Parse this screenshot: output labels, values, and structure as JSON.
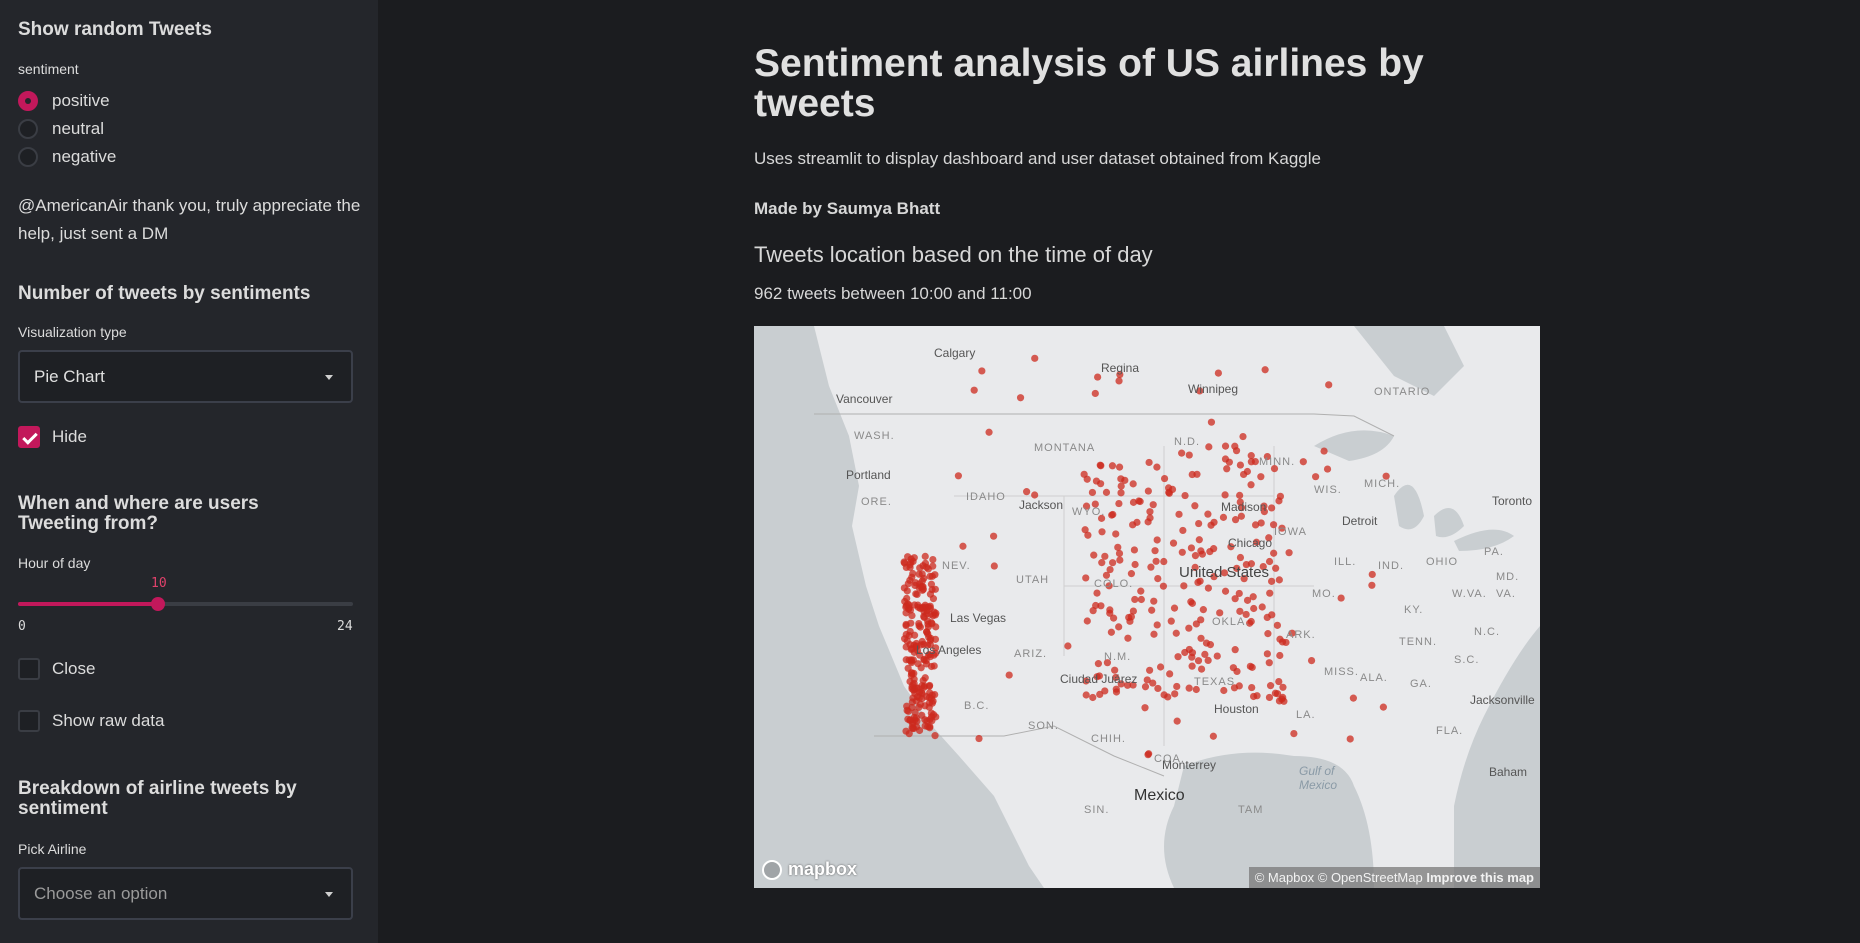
{
  "sidebar": {
    "random_tweets": {
      "heading": "Show random Tweets",
      "sentiment_label": "sentiment",
      "options": [
        "positive",
        "neutral",
        "negative"
      ],
      "selected": "positive",
      "tweet": "@AmericanAir thank you, truly appreciate the help, just sent a DM"
    },
    "number_of_tweets": {
      "heading": "Number of tweets by sentiments",
      "viz_label": "Visualization type",
      "viz_value": "Pie Chart",
      "hide_label": "Hide",
      "hide_checked": true
    },
    "when_where": {
      "heading": "When and where are users Tweeting from?",
      "hour_label": "Hour of day",
      "hour_value": "10",
      "hour_min": "0",
      "hour_max": "24",
      "close_label": "Close",
      "raw_label": "Show raw data"
    },
    "breakdown": {
      "heading": "Breakdown of airline tweets by sentiment",
      "pick_label": "Pick Airline",
      "pick_placeholder": "Choose an option"
    }
  },
  "main": {
    "title": "Sentiment analysis of US airlines by tweets",
    "subtitle": "Uses streamlit to display dashboard and user dataset obtained from Kaggle",
    "author": "Made by Saumya Bhatt",
    "section_title": "Tweets location based on the time of day",
    "count_text": "962 tweets between 10:00 and 11:00"
  },
  "map": {
    "attribution": "© Mapbox © OpenStreetMap",
    "improve": "Improve this map",
    "logo": "mapbox",
    "dot_color": "#cc2a1e",
    "cities": [
      "Calgary",
      "Regina",
      "Winnipeg",
      "Vancouver",
      "Portland",
      "Jackson",
      "Las Vegas",
      "Los Angeles",
      "Ciudad Juárez",
      "Houston",
      "Monterrey",
      "Mexico",
      "Chicago",
      "Madison",
      "Detroit",
      "Toronto",
      "Jacksonville",
      "United States",
      "Gulf of Mexico",
      "Baham"
    ],
    "regions": [
      "ONTARIO",
      "WASH.",
      "MONTANA",
      "N.D.",
      "MINN.",
      "WIS.",
      "MICH.",
      "ORE.",
      "IDAHO",
      "WYO.",
      "IOWA",
      "ILL.",
      "IND.",
      "OHIO",
      "PA.",
      "NEV.",
      "UTAH",
      "COLO.",
      "MO.",
      "KY.",
      "W.VA.",
      "VA.",
      "MD.",
      "TENN.",
      "N.C.",
      "S.C.",
      "ARIZ.",
      "N.M.",
      "OKLA.",
      "ARK.",
      "MISS.",
      "ALA.",
      "GA.",
      "TEXAS",
      "LA.",
      "FLA.",
      "SON.",
      "CHIH.",
      "COA.",
      "B.C.",
      "SIN.",
      "TAM"
    ]
  }
}
